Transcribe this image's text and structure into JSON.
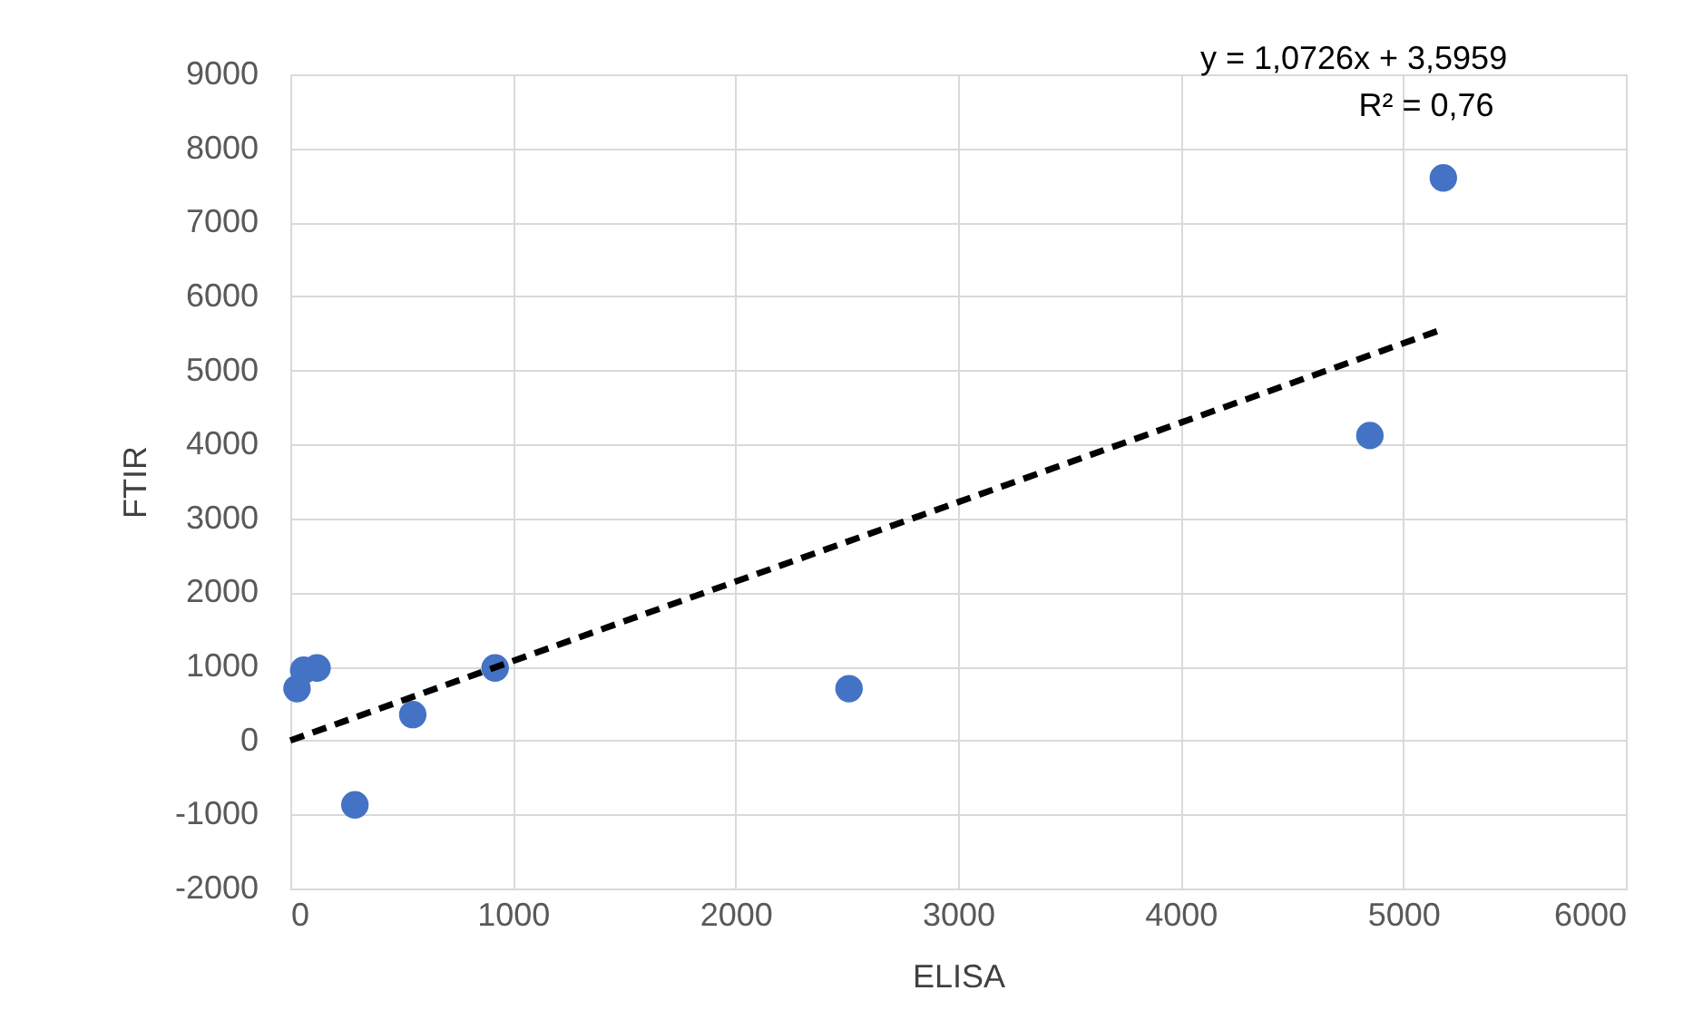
{
  "chart_data": {
    "type": "scatter",
    "xlabel": "ELISA",
    "ylabel": "FTIR",
    "series": [
      {
        "color": "#4472c4",
        "marker": "circle",
        "x": [
          30,
          60,
          120,
          550,
          920,
          290,
          2510,
          4850,
          5180
        ],
        "values": [
          700,
          950,
          980,
          350,
          980,
          -870,
          700,
          4120,
          7600
        ]
      },
      {
        "type": "line",
        "color": "#000000",
        "line_style": "dashed",
        "marker": "none",
        "x": [
          0,
          5180
        ],
        "values": [
          0,
          5560
        ]
      }
    ],
    "annotations": [
      "y = 1,0726x + 3,5959",
      "R² = 0,76"
    ],
    "xlim": [
      0,
      6000
    ],
    "xticks": [
      0,
      1000,
      2000,
      3000,
      4000,
      5000,
      6000
    ],
    "ylim": [
      -2000,
      9000
    ],
    "yticks": [
      -2000,
      -1000,
      0,
      1000,
      2000,
      3000,
      4000,
      5000,
      6000,
      7000,
      8000,
      9000
    ],
    "grid": true
  }
}
